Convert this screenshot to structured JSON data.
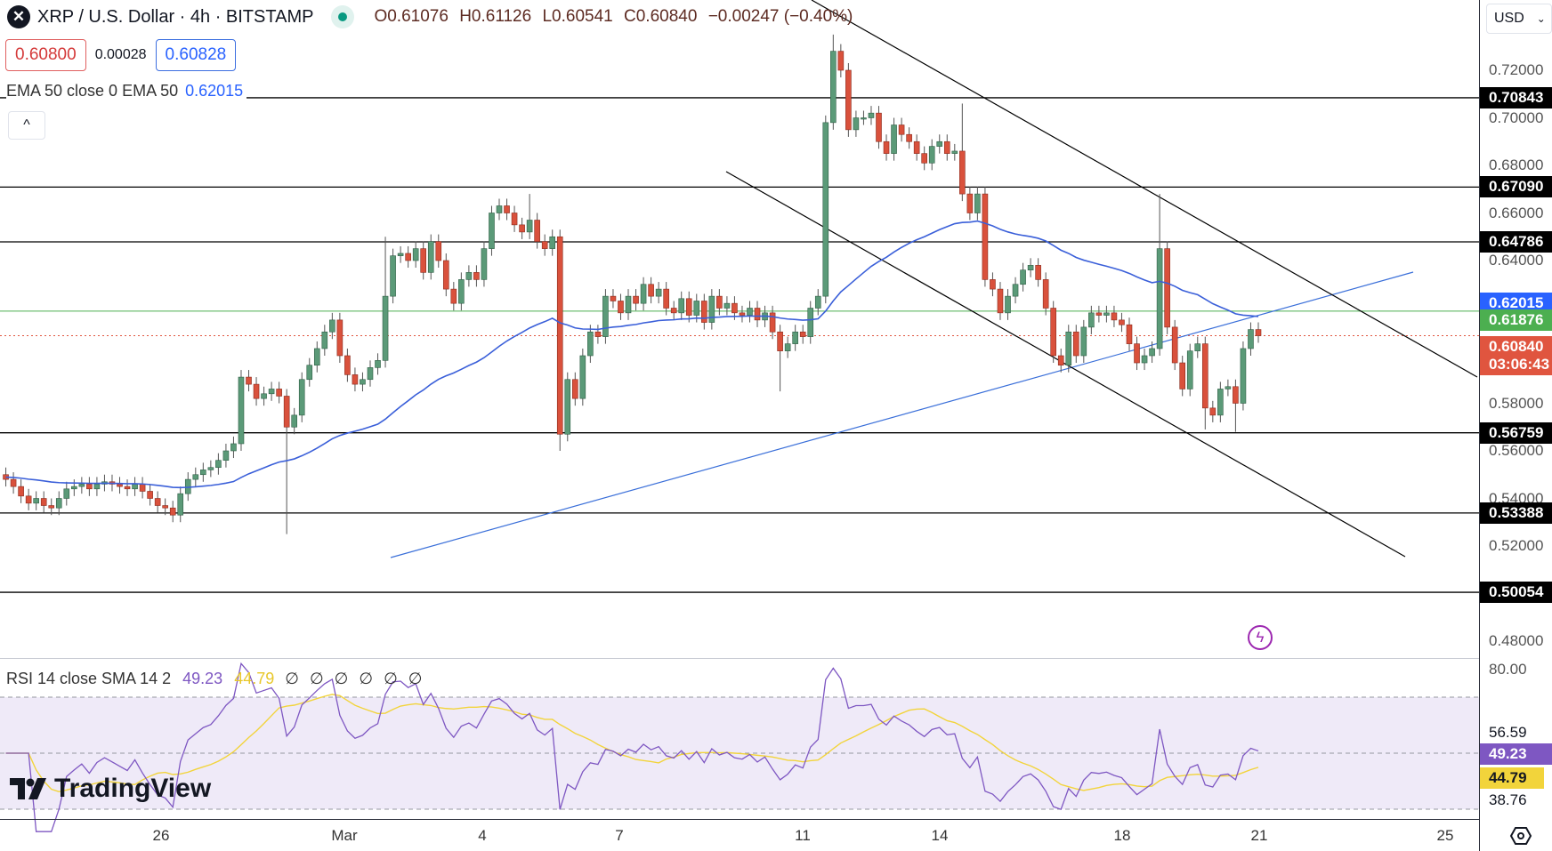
{
  "header": {
    "symbol_icon": "xrp-logo-icon",
    "title": "XRP / U.S. Dollar · 4h · BITSTAMP",
    "market_status": "market-open-dot-icon",
    "ohlc": {
      "open": "O0.61076",
      "high": "H0.61126",
      "low": "L0.60541",
      "close": "C0.60840",
      "change": "−0.00247 (−0.40%)"
    }
  },
  "trade": {
    "sell": "0.60800",
    "spread": "0.00028",
    "buy": "0.60828"
  },
  "ema_legend": {
    "label": "EMA 50 close 0 EMA 50",
    "value": "0.62015"
  },
  "collapse_label": "^",
  "currency": "USD",
  "price_axis": [
    "0.72000",
    "0.70000",
    "0.68000",
    "0.66000",
    "0.64000",
    "0.58000",
    "0.56000",
    "0.54000",
    "0.52000",
    "0.48000"
  ],
  "levels": [
    "0.70843",
    "0.67090",
    "0.64786",
    "0.56759",
    "0.53388",
    "0.50054"
  ],
  "tags": {
    "ema": "0.62015",
    "green_line": "0.61876",
    "last": "0.60840",
    "countdown": "03:06:43"
  },
  "colors": {
    "up": "#5b9a78",
    "down": "#d9513c",
    "ema": "#3a5fd9",
    "rsi": "#7e57c2",
    "rsi_sma": "#f2d43b",
    "ema_tag": "#2962ff",
    "green_tag": "#4caf50",
    "last_tag": "#e0553f"
  },
  "rsi": {
    "legend": "RSI 14 close SMA 14 2",
    "value": "49.23",
    "sma": "44.79",
    "nulls": [
      "∅",
      "∅",
      "∅",
      "∅",
      "∅",
      "∅"
    ],
    "axis": {
      "top": "80.00",
      "a": "56.59",
      "rsi": "49.23",
      "sma": "44.79",
      "b": "38.76"
    }
  },
  "time_axis": [
    "26",
    "Mar",
    "4",
    "7",
    "11",
    "14",
    "18",
    "21",
    "25"
  ],
  "brand": "TradingView",
  "chart_data": {
    "type": "candlestick",
    "interval": "4h",
    "ylim": [
      0.47,
      0.74
    ],
    "closes": [
      0.548,
      0.545,
      0.541,
      0.538,
      0.54,
      0.537,
      0.536,
      0.54,
      0.544,
      0.545,
      0.546,
      0.544,
      0.546,
      0.547,
      0.546,
      0.545,
      0.544,
      0.546,
      0.543,
      0.54,
      0.537,
      0.536,
      0.533,
      0.542,
      0.548,
      0.55,
      0.552,
      0.553,
      0.556,
      0.56,
      0.563,
      0.591,
      0.588,
      0.582,
      0.584,
      0.586,
      0.583,
      0.57,
      0.575,
      0.59,
      0.596,
      0.603,
      0.61,
      0.615,
      0.6,
      0.592,
      0.588,
      0.59,
      0.595,
      0.598,
      0.625,
      0.642,
      0.643,
      0.64,
      0.645,
      0.635,
      0.648,
      0.64,
      0.628,
      0.622,
      0.632,
      0.635,
      0.632,
      0.645,
      0.66,
      0.663,
      0.66,
      0.655,
      0.652,
      0.657,
      0.648,
      0.645,
      0.65,
      0.567,
      0.59,
      0.582,
      0.6,
      0.61,
      0.608,
      0.625,
      0.623,
      0.618,
      0.625,
      0.622,
      0.63,
      0.625,
      0.628,
      0.62,
      0.618,
      0.624,
      0.617,
      0.623,
      0.614,
      0.625,
      0.62,
      0.622,
      0.618,
      0.617,
      0.62,
      0.615,
      0.618,
      0.61,
      0.602,
      0.605,
      0.61,
      0.608,
      0.62,
      0.625,
      0.698,
      0.728,
      0.72,
      0.695,
      0.7,
      0.7,
      0.702,
      0.69,
      0.685,
      0.697,
      0.693,
      0.69,
      0.685,
      0.681,
      0.688,
      0.69,
      0.685,
      0.686,
      0.668,
      0.66,
      0.668,
      0.632,
      0.628,
      0.618,
      0.625,
      0.63,
      0.636,
      0.638,
      0.632,
      0.62,
      0.6,
      0.596,
      0.61,
      0.6,
      0.612,
      0.618,
      0.617,
      0.618,
      0.615,
      0.613,
      0.605,
      0.597,
      0.6,
      0.603,
      0.645,
      0.612,
      0.597,
      0.586,
      0.602,
      0.605,
      0.578,
      0.575,
      0.586,
      0.587,
      0.58,
      0.603,
      0.611,
      0.6084
    ],
    "wick_extremes": {
      "37": {
        "l": 0.525
      },
      "73": {
        "l": 0.56
      },
      "50": {
        "h": 0.65
      },
      "69": {
        "h": 0.668
      },
      "109": {
        "h": 0.735
      },
      "126": {
        "h": 0.706
      },
      "152": {
        "h": 0.668
      },
      "158": {
        "l": 0.569
      },
      "162": {
        "l": 0.568
      },
      "102": {
        "l": 0.585
      }
    },
    "overlays": {
      "ema_period": 50,
      "rsi_period": 14,
      "rsi_sma_period": 14,
      "rsi_bands": [
        70,
        50,
        30
      ]
    }
  }
}
